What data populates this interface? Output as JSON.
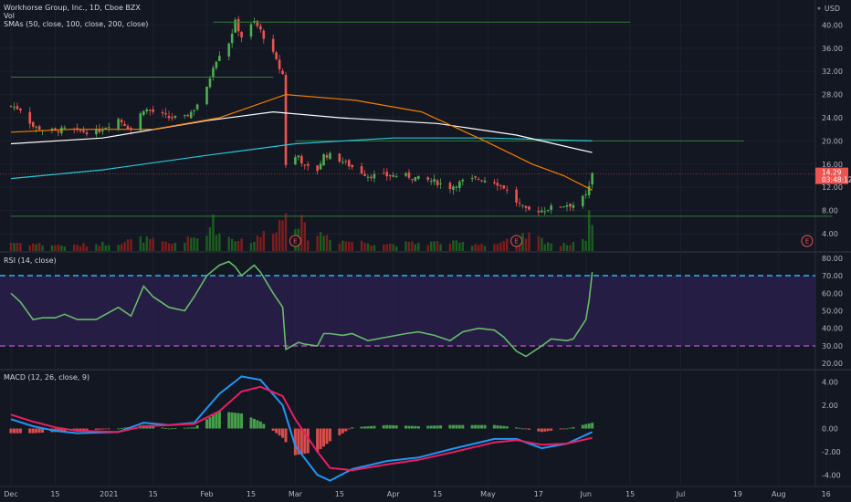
{
  "header": {
    "title": "Workhorse Group, Inc., 1D, Cboe BZX",
    "vol_label": "Vol",
    "sma_label": "SMAs (50, close, 100, close, 200, close)",
    "rsi_label": "RSI (14, close)",
    "macd_label": "MACD (12, 26, close, 9)",
    "currency": "USD"
  },
  "price_badge": {
    "value": "14.29",
    "countdown": "03:48:12",
    "color": "#ef5350"
  },
  "colors": {
    "background": "#131722",
    "up": "#26a69a",
    "up_candle": "#4caf50",
    "down_candle": "#ef5350",
    "sma50": "#f57c00",
    "sma100": "#ffffff",
    "sma200": "#26c6da",
    "hline": "#2e7d32",
    "rsi_line": "#66bb6a",
    "rsi_band": "#2a1f4a",
    "rsi_upper": "#29b6f6",
    "rsi_lower": "#ab47bc",
    "macd_line": "#2196f3",
    "signal_line": "#e91e63"
  },
  "chart_data": [
    {
      "type": "candlestick",
      "title": "Workhorse Group, Inc., 1D, Cboe BZX",
      "ylabel": "USD",
      "yticks": [
        4,
        8,
        12,
        16,
        20,
        24,
        28,
        32,
        36,
        40
      ],
      "ytick_labels": [
        "4.00",
        "8.00",
        "12.00",
        "16.00",
        "20.00",
        "24.00",
        "28.00",
        "32.00",
        "36.00",
        "40.00"
      ],
      "ylim": [
        1,
        44
      ],
      "x_range": [
        "2020-12-01",
        "2021-08-20"
      ],
      "last_price": 14.29,
      "close_series": [
        [
          "2020-12-01",
          26.0
        ],
        [
          "2020-12-04",
          25.5
        ],
        [
          "2020-12-08",
          22.5
        ],
        [
          "2020-12-11",
          22.0
        ],
        [
          "2020-12-15",
          21.7
        ],
        [
          "2020-12-18",
          22.0
        ],
        [
          "2020-12-22",
          21.7
        ],
        [
          "2020-12-28",
          21.5
        ],
        [
          "2021-01-04",
          23.8
        ],
        [
          "2021-01-08",
          22.0
        ],
        [
          "2021-01-12",
          25.5
        ],
        [
          "2021-01-15",
          25.0
        ],
        [
          "2021-01-20",
          24.0
        ],
        [
          "2021-01-25",
          24.0
        ],
        [
          "2021-01-28",
          25.5
        ],
        [
          "2021-02-01",
          29.0
        ],
        [
          "2021-02-03",
          33.0
        ],
        [
          "2021-02-05",
          35.0
        ],
        [
          "2021-02-08",
          37.0
        ],
        [
          "2021-02-10",
          40.5
        ],
        [
          "2021-02-12",
          38.0
        ],
        [
          "2021-02-16",
          40.5
        ],
        [
          "2021-02-18",
          39.0
        ],
        [
          "2021-02-22",
          35.0
        ],
        [
          "2021-02-24",
          32.5
        ],
        [
          "2021-02-25",
          31.5
        ],
        [
          "2021-02-26",
          16.0
        ],
        [
          "2021-03-02",
          17.5
        ],
        [
          "2021-03-04",
          15.5
        ],
        [
          "2021-03-08",
          15.0
        ],
        [
          "2021-03-10",
          17.5
        ],
        [
          "2021-03-12",
          17.5
        ],
        [
          "2021-03-16",
          16.5
        ],
        [
          "2021-03-19",
          15.5
        ],
        [
          "2021-03-24",
          14.0
        ],
        [
          "2021-03-30",
          14.0
        ],
        [
          "2021-04-05",
          14.0
        ],
        [
          "2021-04-09",
          13.5
        ],
        [
          "2021-04-14",
          13.0
        ],
        [
          "2021-04-19",
          12.0
        ],
        [
          "2021-04-23",
          13.0
        ],
        [
          "2021-04-28",
          13.5
        ],
        [
          "2021-05-03",
          13.0
        ],
        [
          "2021-05-06",
          12.0
        ],
        [
          "2021-05-10",
          9.5
        ],
        [
          "2021-05-13",
          8.0
        ],
        [
          "2021-05-18",
          8.0
        ],
        [
          "2021-05-21",
          8.5
        ],
        [
          "2021-05-26",
          9.0
        ],
        [
          "2021-05-28",
          9.0
        ],
        [
          "2021-06-01",
          10.5
        ],
        [
          "2021-06-02",
          12.0
        ],
        [
          "2021-06-03",
          14.29
        ]
      ],
      "sma50": [
        [
          "2020-12-01",
          21.5
        ],
        [
          "2020-12-20",
          22.0
        ],
        [
          "2021-01-15",
          22.0
        ],
        [
          "2021-02-05",
          24.0
        ],
        [
          "2021-02-26",
          28.0
        ],
        [
          "2021-03-20",
          27.0
        ],
        [
          "2021-04-10",
          25.0
        ],
        [
          "2021-04-30",
          20.0
        ],
        [
          "2021-05-15",
          16.0
        ],
        [
          "2021-05-25",
          14.0
        ],
        [
          "2021-06-03",
          11.5
        ]
      ],
      "sma100": [
        [
          "2020-12-01",
          19.5
        ],
        [
          "2020-12-30",
          20.5
        ],
        [
          "2021-02-01",
          23.5
        ],
        [
          "2021-02-22",
          25.0
        ],
        [
          "2021-03-15",
          24.0
        ],
        [
          "2021-04-15",
          23.0
        ],
        [
          "2021-05-10",
          21.0
        ],
        [
          "2021-06-03",
          18.0
        ]
      ],
      "sma200": [
        [
          "2020-12-01",
          13.5
        ],
        [
          "2020-12-30",
          15.0
        ],
        [
          "2021-02-01",
          17.5
        ],
        [
          "2021-03-01",
          19.5
        ],
        [
          "2021-04-01",
          20.5
        ],
        [
          "2021-05-01",
          20.5
        ],
        [
          "2021-06-03",
          20.0
        ]
      ],
      "horizontal_lines": [
        {
          "price": 40.5,
          "from": "2021-02-03",
          "to": "2021-06-15"
        },
        {
          "price": 31.0,
          "from": "2020-12-01",
          "to": "2021-02-22"
        },
        {
          "price": 20.0,
          "from": "2021-03-01",
          "to": "2021-07-21"
        },
        {
          "price": 7.0,
          "from": "2020-12-01",
          "to": "2021-08-18"
        }
      ],
      "earnings_markers": [
        "2021-03-01",
        "2021-05-10",
        "2021-08-10"
      ]
    },
    {
      "type": "bar",
      "title": "Vol",
      "note": "volume bars, unitless relative heights",
      "relative_volume": [
        [
          "2020-12-01",
          0.25
        ],
        [
          "2020-12-10",
          0.2
        ],
        [
          "2020-12-20",
          0.15
        ],
        [
          "2021-01-04",
          0.25
        ],
        [
          "2021-01-12",
          0.35
        ],
        [
          "2021-01-20",
          0.2
        ],
        [
          "2021-02-01",
          0.45
        ],
        [
          "2021-02-02",
          1.0
        ],
        [
          "2021-02-05",
          0.5
        ],
        [
          "2021-02-10",
          0.35
        ],
        [
          "2021-02-16",
          0.3
        ],
        [
          "2021-02-25",
          0.9
        ],
        [
          "2021-02-26",
          1.35
        ],
        [
          "2021-03-01",
          0.95
        ],
        [
          "2021-03-03",
          0.8
        ],
        [
          "2021-03-05",
          0.45
        ],
        [
          "2021-03-10",
          0.5
        ],
        [
          "2021-03-15",
          0.3
        ],
        [
          "2021-04-01",
          0.2
        ],
        [
          "2021-04-14",
          0.25
        ],
        [
          "2021-05-03",
          0.2
        ],
        [
          "2021-05-10",
          0.35
        ],
        [
          "2021-05-14",
          0.45
        ],
        [
          "2021-05-24",
          0.15
        ],
        [
          "2021-06-01",
          0.4
        ],
        [
          "2021-06-02",
          0.9
        ],
        [
          "2021-06-03",
          1.1
        ]
      ]
    },
    {
      "type": "line",
      "title": "RSI (14, close)",
      "yticks": [
        20,
        30,
        40,
        50,
        60,
        70,
        80
      ],
      "ytick_labels": [
        "20.00",
        "30.00",
        "40.00",
        "50.00",
        "60.00",
        "70.00",
        "80.00"
      ],
      "ylim": [
        17,
        83
      ],
      "band": [
        30,
        70
      ],
      "series": [
        {
          "name": "RSI",
          "points": [
            [
              "2020-12-01",
              60
            ],
            [
              "2020-12-04",
              55
            ],
            [
              "2020-12-08",
              45
            ],
            [
              "2020-12-11",
              46
            ],
            [
              "2020-12-15",
              46
            ],
            [
              "2020-12-18",
              48
            ],
            [
              "2020-12-22",
              45
            ],
            [
              "2020-12-28",
              45
            ],
            [
              "2021-01-04",
              52
            ],
            [
              "2021-01-08",
              47
            ],
            [
              "2021-01-12",
              64
            ],
            [
              "2021-01-15",
              58
            ],
            [
              "2021-01-20",
              52
            ],
            [
              "2021-01-25",
              50
            ],
            [
              "2021-01-28",
              58
            ],
            [
              "2021-02-01",
              70
            ],
            [
              "2021-02-03",
              73
            ],
            [
              "2021-02-05",
              76
            ],
            [
              "2021-02-08",
              78
            ],
            [
              "2021-02-10",
              75
            ],
            [
              "2021-02-12",
              70
            ],
            [
              "2021-02-16",
              76
            ],
            [
              "2021-02-18",
              72
            ],
            [
              "2021-02-22",
              60
            ],
            [
              "2021-02-25",
              52
            ],
            [
              "2021-02-26",
              28
            ],
            [
              "2021-03-02",
              32
            ],
            [
              "2021-03-04",
              31
            ],
            [
              "2021-03-08",
              30
            ],
            [
              "2021-03-10",
              37
            ],
            [
              "2021-03-12",
              37
            ],
            [
              "2021-03-16",
              36
            ],
            [
              "2021-03-19",
              37
            ],
            [
              "2021-03-24",
              33
            ],
            [
              "2021-03-30",
              35
            ],
            [
              "2021-04-05",
              37
            ],
            [
              "2021-04-09",
              38
            ],
            [
              "2021-04-14",
              36
            ],
            [
              "2021-04-19",
              33
            ],
            [
              "2021-04-23",
              38
            ],
            [
              "2021-04-28",
              40
            ],
            [
              "2021-05-03",
              39
            ],
            [
              "2021-05-06",
              35
            ],
            [
              "2021-05-10",
              27
            ],
            [
              "2021-05-13",
              24
            ],
            [
              "2021-05-18",
              30
            ],
            [
              "2021-05-21",
              34
            ],
            [
              "2021-05-26",
              33
            ],
            [
              "2021-05-28",
              34
            ],
            [
              "2021-06-01",
              45
            ],
            [
              "2021-06-02",
              56
            ],
            [
              "2021-06-03",
              72
            ]
          ]
        }
      ]
    },
    {
      "type": "line",
      "title": "MACD (12, 26, close, 9)",
      "yticks": [
        -4,
        -2,
        0,
        2,
        4
      ],
      "ytick_labels": [
        "-4.00",
        "-2.00",
        "0.00",
        "2.00",
        "4.00"
      ],
      "ylim": [
        -5,
        5
      ],
      "series": [
        {
          "name": "MACD",
          "points": [
            [
              "2020-12-01",
              0.8
            ],
            [
              "2020-12-08",
              0.2
            ],
            [
              "2020-12-15",
              -0.2
            ],
            [
              "2020-12-22",
              -0.4
            ],
            [
              "2021-01-04",
              -0.3
            ],
            [
              "2021-01-12",
              0.5
            ],
            [
              "2021-01-20",
              0.3
            ],
            [
              "2021-01-28",
              0.5
            ],
            [
              "2021-02-05",
              3.0
            ],
            [
              "2021-02-12",
              4.5
            ],
            [
              "2021-02-18",
              4.2
            ],
            [
              "2021-02-25",
              2.0
            ],
            [
              "2021-03-01",
              -1.5
            ],
            [
              "2021-03-08",
              -4.0
            ],
            [
              "2021-03-12",
              -4.5
            ],
            [
              "2021-03-19",
              -3.5
            ],
            [
              "2021-03-30",
              -2.8
            ],
            [
              "2021-04-09",
              -2.5
            ],
            [
              "2021-04-19",
              -1.8
            ],
            [
              "2021-05-03",
              -0.9
            ],
            [
              "2021-05-10",
              -0.9
            ],
            [
              "2021-05-18",
              -1.7
            ],
            [
              "2021-05-26",
              -1.3
            ],
            [
              "2021-06-03",
              -0.3
            ]
          ]
        },
        {
          "name": "Signal",
          "points": [
            [
              "2020-12-01",
              1.2
            ],
            [
              "2020-12-08",
              0.6
            ],
            [
              "2020-12-15",
              0.1
            ],
            [
              "2020-12-22",
              -0.2
            ],
            [
              "2021-01-04",
              -0.3
            ],
            [
              "2021-01-12",
              0.2
            ],
            [
              "2021-01-20",
              0.3
            ],
            [
              "2021-01-28",
              0.4
            ],
            [
              "2021-02-05",
              1.5
            ],
            [
              "2021-02-12",
              3.2
            ],
            [
              "2021-02-18",
              3.6
            ],
            [
              "2021-02-25",
              2.8
            ],
            [
              "2021-03-01",
              0.8
            ],
            [
              "2021-03-08",
              -2.0
            ],
            [
              "2021-03-12",
              -3.4
            ],
            [
              "2021-03-19",
              -3.6
            ],
            [
              "2021-03-30",
              -3.1
            ],
            [
              "2021-04-09",
              -2.7
            ],
            [
              "2021-04-19",
              -2.1
            ],
            [
              "2021-05-03",
              -1.2
            ],
            [
              "2021-05-10",
              -1.0
            ],
            [
              "2021-05-18",
              -1.4
            ],
            [
              "2021-05-26",
              -1.3
            ],
            [
              "2021-06-03",
              -0.8
            ]
          ]
        }
      ]
    }
  ],
  "time_axis": {
    "ticks": [
      {
        "label": "Dec",
        "date": "2020-12-01"
      },
      {
        "label": "15",
        "date": "2020-12-15"
      },
      {
        "label": "2021",
        "date": "2021-01-01"
      },
      {
        "label": "15",
        "date": "2021-01-15"
      },
      {
        "label": "Feb",
        "date": "2021-02-01"
      },
      {
        "label": "15",
        "date": "2021-02-15"
      },
      {
        "label": "Mar",
        "date": "2021-03-01"
      },
      {
        "label": "15",
        "date": "2021-03-15"
      },
      {
        "label": "Apr",
        "date": "2021-04-01"
      },
      {
        "label": "15",
        "date": "2021-04-15"
      },
      {
        "label": "May",
        "date": "2021-05-01"
      },
      {
        "label": "17",
        "date": "2021-05-17"
      },
      {
        "label": "Jun",
        "date": "2021-06-01"
      },
      {
        "label": "15",
        "date": "2021-06-15"
      },
      {
        "label": "Jul",
        "date": "2021-07-01"
      },
      {
        "label": "19",
        "date": "2021-07-19"
      },
      {
        "label": "Aug",
        "date": "2021-08-01"
      },
      {
        "label": "16",
        "date": "2021-08-16"
      }
    ]
  },
  "earnings_label": "E"
}
